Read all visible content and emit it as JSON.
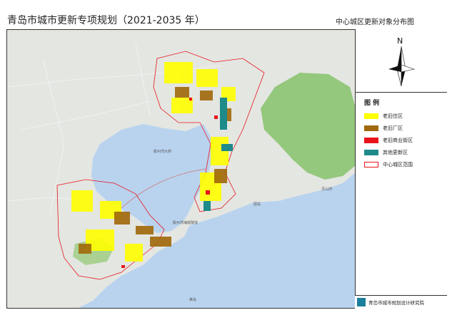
{
  "header": {
    "title": "青岛市城市更新专项规划（2021-2035 年）",
    "subtitle": "中心城区更新对象分布图"
  },
  "compass": {
    "label": "N"
  },
  "legend": {
    "title": "图 例",
    "items": [
      {
        "label": "老旧住区",
        "color": "#ffff00",
        "kind": "fill"
      },
      {
        "label": "老旧厂区",
        "color": "#a0680a",
        "kind": "fill"
      },
      {
        "label": "老旧商业街区",
        "color": "#e8141c",
        "kind": "fill"
      },
      {
        "label": "其他更新区",
        "color": "#1f8a8a",
        "kind": "fill"
      },
      {
        "label": "中心城区范围",
        "color": "#e8141c",
        "kind": "outline"
      }
    ]
  },
  "map": {
    "place_labels": [
      "胶州湾大桥",
      "胶州湾海底隧道",
      "黄岛",
      "团岛",
      "灵山湾"
    ],
    "colors": {
      "sea": "#b9d3ef",
      "land": "#e4e6e2",
      "mountain": "#86c26a"
    }
  },
  "institution": {
    "name": "青岛市城市规划设计研究院"
  }
}
